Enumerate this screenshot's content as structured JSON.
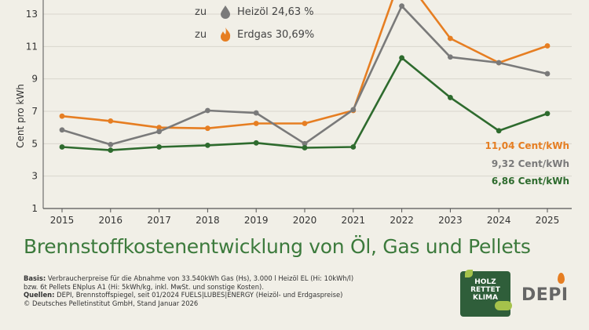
{
  "chart_data": {
    "type": "line",
    "ylabel": "Cent pro kWh",
    "xlabel": "",
    "x": [
      2015,
      2016,
      2017,
      2018,
      2019,
      2020,
      2021,
      2022,
      2023,
      2024,
      2025
    ],
    "ylim": [
      1,
      14
    ],
    "yticks": [
      1,
      3,
      5,
      7,
      9,
      11,
      13
    ],
    "series": [
      {
        "name": "Erdgas",
        "color": "#e67e22",
        "values": [
          6.7,
          6.4,
          6.0,
          5.95,
          6.25,
          6.25,
          7.05,
          15.5,
          11.5,
          10.0,
          11.04
        ]
      },
      {
        "name": "Heizöl",
        "color": "#7a7a7a",
        "values": [
          5.85,
          4.95,
          5.75,
          7.05,
          6.9,
          5.0,
          7.1,
          13.5,
          10.35,
          10.0,
          9.32
        ]
      },
      {
        "name": "Pellets",
        "color": "#2e6b2e",
        "values": [
          4.8,
          4.6,
          4.8,
          4.9,
          5.05,
          4.75,
          4.8,
          10.3,
          7.85,
          5.8,
          6.86
        ]
      }
    ],
    "legend": [
      {
        "prefix": "zu",
        "label": "Heizöl 24,63 %",
        "icon": "oil-drop-icon",
        "color": "#7a7a7a"
      },
      {
        "prefix": "zu",
        "label": "Erdgas 30,69%",
        "icon": "gas-flame-icon",
        "color": "#e67e22"
      }
    ],
    "end_labels": [
      {
        "text": "11,04 Cent/kWh",
        "color": "#e67e22"
      },
      {
        "text": "9,32 Cent/kWh",
        "color": "#7a7a7a"
      },
      {
        "text": "6,86 Cent/kWh",
        "color": "#2e6b2e"
      }
    ],
    "title": "Brennstoffkostenentwicklung von Öl, Gas und Pellets"
  },
  "footer": {
    "basis_label": "Basis:",
    "basis_text": "Verbraucherpreise für die Abnahme von 33.540kWh Gas (Hs), 3.000 l Heizöl EL (Hi: 10kWh/l)",
    "basis_text2": "bzw. 6t Pellets ENplus A1 (Hi: 5kWh/kg, inkl. MwSt. und sonstige Kosten).",
    "quellen_label": "Quellen:",
    "quellen_text": "DEPI, Brennstoffspiegel, seit 01/2024 FUELS|LUBES|ENERGY (Heizöl- und Erdgaspreise)",
    "copyright": "© Deutsches Pelletinstitut GmbH, Stand Januar 2026"
  },
  "badge": {
    "line1": "HOLZ",
    "line2": "RETTET",
    "line3": "KLIMA"
  },
  "logo": "DEPI"
}
